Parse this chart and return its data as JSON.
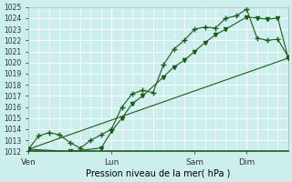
{
  "xlabel": "Pression niveau de la mer( hPa )",
  "background_color": "#cceeed",
  "grid_color": "#ffffff",
  "line_color": "#1a5c1a",
  "ylim": [
    1012,
    1025
  ],
  "yticks": [
    1012,
    1013,
    1014,
    1015,
    1016,
    1017,
    1018,
    1019,
    1020,
    1021,
    1022,
    1023,
    1024,
    1025
  ],
  "day_labels": [
    "Ven",
    "Lun",
    "Sam",
    "Dim"
  ],
  "day_positions": [
    0.0,
    0.32,
    0.64,
    0.84
  ],
  "xlim": [
    0.0,
    1.0
  ],
  "line1_x": [
    0.0,
    0.04,
    0.08,
    0.12,
    0.16,
    0.2,
    0.24,
    0.28,
    0.32,
    0.36,
    0.4,
    0.44,
    0.48,
    0.52,
    0.56,
    0.6,
    0.64,
    0.68,
    0.72,
    0.76,
    0.8,
    0.84,
    0.88,
    0.92,
    0.96,
    1.0
  ],
  "line1_y": [
    1012.2,
    1013.4,
    1013.7,
    1013.5,
    1012.8,
    1012.3,
    1013.0,
    1013.5,
    1014.0,
    1016.0,
    1017.2,
    1017.5,
    1017.3,
    1019.8,
    1021.2,
    1022.0,
    1023.0,
    1023.2,
    1023.1,
    1024.0,
    1024.2,
    1024.8,
    1022.2,
    1022.0,
    1022.1,
    1020.5
  ],
  "line2_x": [
    0.0,
    0.16,
    0.28,
    0.32,
    0.36,
    0.4,
    0.44,
    0.52,
    0.56,
    0.6,
    0.64,
    0.68,
    0.72,
    0.76,
    0.84,
    0.88,
    0.92,
    0.96,
    1.0
  ],
  "line2_y": [
    1012.2,
    1012.0,
    1012.3,
    1013.8,
    1015.0,
    1016.3,
    1017.0,
    1018.7,
    1019.6,
    1020.2,
    1021.0,
    1021.8,
    1022.5,
    1023.0,
    1024.1,
    1024.0,
    1023.9,
    1024.0,
    1020.4
  ],
  "line3_x": [
    0.0,
    1.0
  ],
  "line3_y": [
    1012.2,
    1020.4
  ]
}
